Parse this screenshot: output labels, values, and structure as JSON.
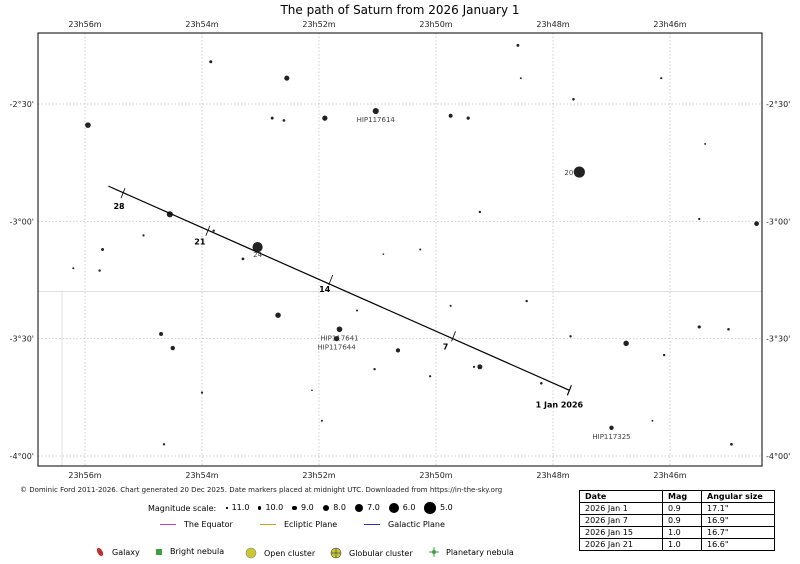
{
  "chart_data": {
    "type": "scatter",
    "title": "The path of Saturn from 2026 January 1",
    "x_axis": {
      "label": "",
      "ticks": [
        "23h56m",
        "23h54m",
        "23h52m",
        "23h50m",
        "23h48m",
        "23h46m"
      ]
    },
    "y_axis": {
      "label": "",
      "ticks": [
        "-2°30'",
        "-3°00'",
        "-3°30'",
        "-4°00'"
      ]
    },
    "grid": true,
    "path": {
      "coords": [
        {
          "ra_min": 1427.72,
          "dec_deg": -3.72
        },
        {
          "ra_min": 1435.6,
          "dec_deg": -2.85
        }
      ],
      "date_markers": [
        {
          "label": "1 Jan 2026",
          "ra_min": 1427.72,
          "dec_deg": -3.72
        },
        {
          "label": "7",
          "ra_min": 1429.7,
          "dec_deg": -3.49
        },
        {
          "label": "14",
          "ra_min": 1431.8,
          "dec_deg": -3.25
        },
        {
          "label": "21",
          "ra_min": 1433.9,
          "dec_deg": -3.04
        },
        {
          "label": "28",
          "ra_min": 1435.35,
          "dec_deg": -2.88
        }
      ]
    },
    "stars": [
      {
        "ra_min": 1427.55,
        "dec_deg": -2.79,
        "mag": 5.2,
        "label": "20"
      },
      {
        "ra_min": 1433.05,
        "dec_deg": -3.11,
        "mag": 5.8,
        "label": "24"
      },
      {
        "ra_min": 1431.03,
        "dec_deg": -2.53,
        "mag": 8.2,
        "label": "HIP117614"
      },
      {
        "ra_min": 1431.65,
        "dec_deg": -3.46,
        "mag": 8.5,
        "label": "HIP117641"
      },
      {
        "ra_min": 1431.7,
        "dec_deg": -3.5,
        "mag": 8.8,
        "label": "HIP117644"
      },
      {
        "ra_min": 1427.0,
        "dec_deg": -3.88,
        "mag": 9.2,
        "label": "HIP117325"
      },
      {
        "ra_min": 1435.95,
        "dec_deg": -2.59,
        "mag": 8.5
      },
      {
        "ra_min": 1434.55,
        "dec_deg": -2.97,
        "mag": 8.2
      },
      {
        "ra_min": 1431.9,
        "dec_deg": -2.56,
        "mag": 8.7
      },
      {
        "ra_min": 1432.55,
        "dec_deg": -2.39,
        "mag": 8.8
      },
      {
        "ra_min": 1432.7,
        "dec_deg": -3.4,
        "mag": 8.6
      },
      {
        "ra_min": 1430.65,
        "dec_deg": -3.55,
        "mag": 9.3
      },
      {
        "ra_min": 1429.25,
        "dec_deg": -3.62,
        "mag": 8.9
      },
      {
        "ra_min": 1426.75,
        "dec_deg": -3.52,
        "mag": 8.6
      },
      {
        "ra_min": 1424.52,
        "dec_deg": -3.01,
        "mag": 9.0
      },
      {
        "ra_min": 1423.42,
        "dec_deg": -2.61,
        "mag": 8.9
      },
      {
        "ra_min": 1421.18,
        "dec_deg": -2.5,
        "mag": 8.5
      },
      {
        "ra_min": 1421.28,
        "dec_deg": -3.17,
        "mag": 7.8
      },
      {
        "ra_min": 1436.85,
        "dec_deg": -3.49,
        "mag": 8.8
      },
      {
        "ra_min": 1434.5,
        "dec_deg": -3.54,
        "mag": 9.2
      },
      {
        "ra_min": 1434.7,
        "dec_deg": -3.48,
        "mag": 9.5
      },
      {
        "ra_min": 1423.7,
        "dec_deg": -3.42,
        "mag": 9.3
      },
      {
        "ra_min": 1423.75,
        "dec_deg": -3.29,
        "mag": 9.7
      },
      {
        "ra_min": 1425.5,
        "dec_deg": -3.45,
        "mag": 9.9
      },
      {
        "ra_min": 1429.75,
        "dec_deg": -2.55,
        "mag": 9.5
      },
      {
        "ra_min": 1429.45,
        "dec_deg": -2.56,
        "mag": 9.9
      },
      {
        "ra_min": 1435.7,
        "dec_deg": -3.12,
        "mag": 10.1
      },
      {
        "ra_min": 1433.85,
        "dec_deg": -2.32,
        "mag": 10.0
      },
      {
        "ra_min": 1432.8,
        "dec_deg": -2.56,
        "mag": 10.1
      },
      {
        "ra_min": 1432.6,
        "dec_deg": -2.57,
        "mag": 10.2
      },
      {
        "ra_min": 1430.9,
        "dec_deg": -3.14,
        "mag": 10.8
      },
      {
        "ra_min": 1433.3,
        "dec_deg": -3.16,
        "mag": 10.2
      },
      {
        "ra_min": 1435.0,
        "dec_deg": -3.06,
        "mag": 10.5
      },
      {
        "ra_min": 1427.7,
        "dec_deg": -3.49,
        "mag": 10.4
      },
      {
        "ra_min": 1428.2,
        "dec_deg": -3.69,
        "mag": 10.3
      },
      {
        "ra_min": 1424.2,
        "dec_deg": -3.51,
        "mag": 10.3
      },
      {
        "ra_min": 1428.6,
        "dec_deg": -2.25,
        "mag": 10.1
      },
      {
        "ra_min": 1432.12,
        "dec_deg": -3.72,
        "mag": 10.8
      },
      {
        "ra_min": 1431.95,
        "dec_deg": -3.85,
        "mag": 10.6
      },
      {
        "ra_min": 1434.65,
        "dec_deg": -3.95,
        "mag": 10.4
      },
      {
        "ra_min": 1430.27,
        "dec_deg": -3.12,
        "mag": 10.6
      },
      {
        "ra_min": 1428.55,
        "dec_deg": -2.39,
        "mag": 10.7
      },
      {
        "ra_min": 1436.2,
        "dec_deg": -3.2,
        "mag": 10.6
      },
      {
        "ra_min": 1433.8,
        "dec_deg": -3.04,
        "mag": 10.4
      },
      {
        "ra_min": 1435.75,
        "dec_deg": -3.21,
        "mag": 10.4
      },
      {
        "ra_min": 1426.15,
        "dec_deg": -2.39,
        "mag": 10.5
      },
      {
        "ra_min": 1425.4,
        "dec_deg": -2.67,
        "mag": 10.7
      },
      {
        "ra_min": 1425.5,
        "dec_deg": -2.99,
        "mag": 10.5
      },
      {
        "ra_min": 1425.0,
        "dec_deg": -3.46,
        "mag": 10.3
      },
      {
        "ra_min": 1424.95,
        "dec_deg": -3.95,
        "mag": 10.2
      },
      {
        "ra_min": 1434.0,
        "dec_deg": -3.73,
        "mag": 10.5
      },
      {
        "ra_min": 1431.05,
        "dec_deg": -3.63,
        "mag": 10.4
      },
      {
        "ra_min": 1431.35,
        "dec_deg": -3.38,
        "mag": 10.6
      },
      {
        "ra_min": 1430.1,
        "dec_deg": -3.66,
        "mag": 10.5
      },
      {
        "ra_min": 1429.25,
        "dec_deg": -2.96,
        "mag": 10.4
      },
      {
        "ra_min": 1427.65,
        "dec_deg": -2.48,
        "mag": 10.3
      },
      {
        "ra_min": 1429.75,
        "dec_deg": -3.36,
        "mag": 10.6
      },
      {
        "ra_min": 1426.1,
        "dec_deg": -3.57,
        "mag": 10.4
      },
      {
        "ra_min": 1429.35,
        "dec_deg": -3.62,
        "mag": 10.5
      },
      {
        "ra_min": 1428.45,
        "dec_deg": -3.34,
        "mag": 10.4
      },
      {
        "ra_min": 1426.3,
        "dec_deg": -3.85,
        "mag": 10.7
      }
    ],
    "stars_named_hint": "",
    "date_table": {
      "headers": [
        "Date",
        "Mag",
        "Angular size"
      ],
      "rows": [
        [
          "2026 Jan 1",
          "0.9",
          "17.1\""
        ],
        [
          "2026 Jan 7",
          "0.9",
          "16.9\""
        ],
        [
          "2026 Jan 15",
          "1.0",
          "16.7\""
        ],
        [
          "2026 Jan 21",
          "1.0",
          "16.6\""
        ]
      ]
    },
    "legend": {
      "magnitude_scale_label": "Magnitude scale:",
      "magnitudes": [
        "11.0",
        "10.0",
        "9.0",
        "8.0",
        "7.0",
        "6.0",
        "5.0"
      ],
      "lines": [
        {
          "name": "The Equator",
          "color": "#c040c0"
        },
        {
          "name": "Ecliptic Plane",
          "color": "#d4a020"
        },
        {
          "name": "Galactic Plane",
          "color": "#3030b0"
        }
      ],
      "objects": [
        {
          "name": "Galaxy",
          "color": "#c03030"
        },
        {
          "name": "Bright nebula",
          "color": "#40a040"
        },
        {
          "name": "Open cluster",
          "color": "#c8c830"
        },
        {
          "name": "Globular cluster",
          "color": "#c8c830"
        },
        {
          "name": "Planetary nebula",
          "color": "#40a040"
        }
      ]
    }
  },
  "credit": "© Dominic Ford 2011-2026. Chart generated 20 Dec 2025. Date markers placed at midnight UTC. Downloaded from https://in-the-sky.org"
}
